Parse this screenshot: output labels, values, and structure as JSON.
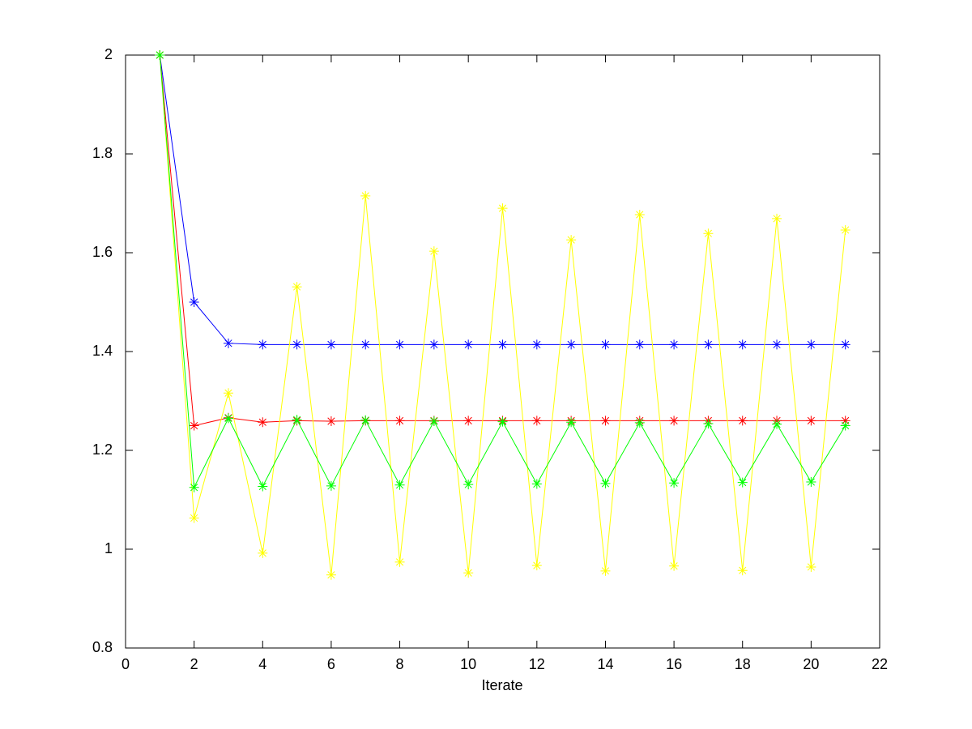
{
  "chart_data": {
    "type": "line",
    "xlabel": "Iterate",
    "x": [
      1,
      2,
      3,
      4,
      5,
      6,
      7,
      8,
      9,
      10,
      11,
      12,
      13,
      14,
      15,
      16,
      17,
      18,
      19,
      20,
      21
    ],
    "series": [
      {
        "color": "#0000ff",
        "values": [
          2,
          1.5,
          1.4167,
          1.4142,
          1.4142,
          1.4142,
          1.4142,
          1.4142,
          1.4142,
          1.4142,
          1.4142,
          1.4142,
          1.4142,
          1.4142,
          1.4142,
          1.4142,
          1.4142,
          1.4142,
          1.4142,
          1.4142,
          1.4142
        ]
      },
      {
        "color": "#ff0000",
        "values": [
          2,
          1.25,
          1.266,
          1.257,
          1.26,
          1.259,
          1.26,
          1.26,
          1.26,
          1.26,
          1.26,
          1.26,
          1.26,
          1.26,
          1.26,
          1.26,
          1.26,
          1.26,
          1.26,
          1.26,
          1.26
        ]
      },
      {
        "color": "#ffff00",
        "values": [
          2,
          1.063,
          1.316,
          0.992,
          1.531,
          0.948,
          1.715,
          0.974,
          1.603,
          0.952,
          1.69,
          0.967,
          1.626,
          0.956,
          1.677,
          0.966,
          1.639,
          0.957,
          1.669,
          0.964,
          1.646
        ]
      },
      {
        "color": "#00ff00",
        "values": [
          2,
          1.125,
          1.265,
          1.127,
          1.262,
          1.128,
          1.261,
          1.13,
          1.259,
          1.131,
          1.258,
          1.132,
          1.257,
          1.133,
          1.256,
          1.134,
          1.254,
          1.135,
          1.253,
          1.136,
          1.25
        ]
      }
    ],
    "xlim": [
      0,
      22
    ],
    "xticks": [
      0,
      2,
      4,
      6,
      8,
      10,
      12,
      14,
      16,
      18,
      20,
      22
    ],
    "ylim": [
      0.8,
      2
    ],
    "yticks": [
      0.8,
      1,
      1.2,
      1.4,
      1.6,
      1.8,
      2
    ]
  }
}
